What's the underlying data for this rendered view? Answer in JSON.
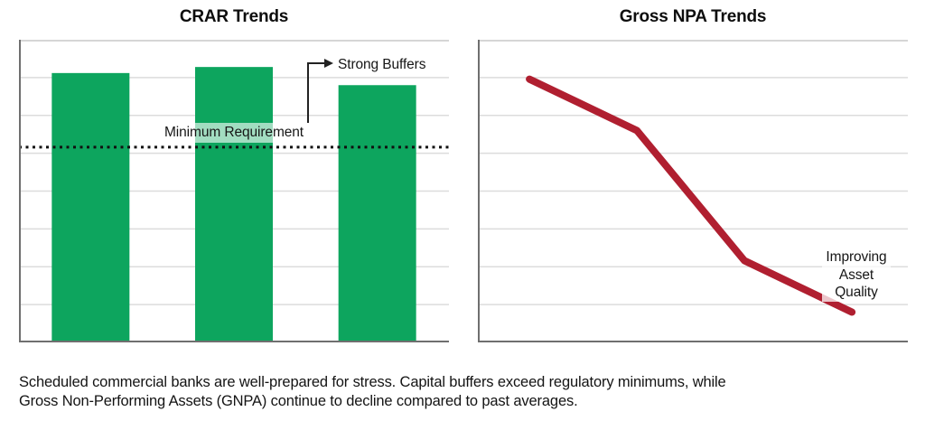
{
  "chart_data": [
    {
      "type": "bar",
      "title": "CRAR Trends",
      "categories": [
        "",
        "",
        ""
      ],
      "values": [
        0.89,
        0.91,
        0.85
      ],
      "ylim": [
        0,
        1
      ],
      "xlabel": "",
      "ylabel": "",
      "grid": "horizontal",
      "legend": "none",
      "bar_color": "#0da55e",
      "threshold": {
        "label": "Minimum Requirement",
        "value": 0.645,
        "line_style": "dotted",
        "line_color": "#111111"
      },
      "annotation": {
        "label": "Strong Buffers",
        "marker": "elbow-arrow"
      }
    },
    {
      "type": "line",
      "title": "Gross NPA Trends",
      "x": [
        0.12,
        0.37,
        0.62,
        0.87
      ],
      "values": [
        0.87,
        0.7,
        0.27,
        0.1
      ],
      "xlim": [
        0,
        1
      ],
      "ylim": [
        0,
        1
      ],
      "grid": "horizontal",
      "legend": "none",
      "line_color": "#b01f30",
      "annotation": {
        "label": "Improving\nAsset Quality"
      }
    }
  ],
  "caption_lines": [
    "Scheduled commercial banks are well-prepared for stress. Capital buffers exceed regulatory minimums, while",
    "Gross Non-Performing Assets (GNPA) continue to decline compared to past averages."
  ]
}
